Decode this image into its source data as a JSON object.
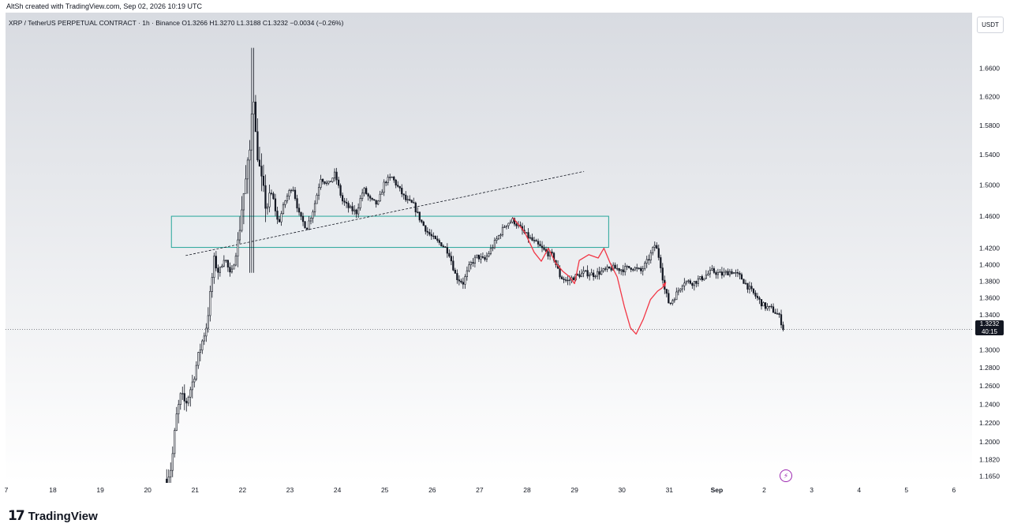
{
  "header": {
    "author_line": "AltSh created with TradingView.com, Sep 02, 2026 10:19 UTC"
  },
  "legend": {
    "symbol_line": "XRP / TetherUS PERPETUAL CONTRACT · 1h · Binance  O1.3266  H1.3270  L1.3188  C1.3232  −0.0034 (−0.26%)"
  },
  "currency_button": "USDT",
  "last_price": {
    "price": "1.3232",
    "countdown": "40:15"
  },
  "footer": {
    "brand": "TradingView",
    "logo_glyph": "17"
  },
  "colors": {
    "candle": "#131722",
    "zone_border": "#26a69a",
    "zone_fill": "#e8eef1",
    "trendline": "#131722",
    "projection": "#f23645",
    "background_top": "#d8dbe1",
    "background_bottom": "#ffffff",
    "indicator": "#9c27b0"
  },
  "icons": {
    "indicator_badge": "lightning-bolt-icon"
  },
  "chart_data": {
    "type": "candlestick",
    "title": "",
    "xlabel": "",
    "ylabel": "",
    "ylim": [
      1.155,
      1.7
    ],
    "y_scale": "log",
    "price_ticks": [
      "1.6600",
      "1.6200",
      "1.5800",
      "1.5400",
      "1.5000",
      "1.4600",
      "1.4200",
      "1.4000",
      "1.3800",
      "1.3600",
      "1.3400",
      "1.3000",
      "1.2800",
      "1.2600",
      "1.2400",
      "1.2200",
      "1.2000",
      "1.1820",
      "1.1650"
    ],
    "time_ticks": [
      {
        "label": "7",
        "day": 7
      },
      {
        "label": "18",
        "day": 18
      },
      {
        "label": "19",
        "day": 19
      },
      {
        "label": "20",
        "day": 20
      },
      {
        "label": "21",
        "day": 21
      },
      {
        "label": "22",
        "day": 22
      },
      {
        "label": "23",
        "day": 23
      },
      {
        "label": "24",
        "day": 24
      },
      {
        "label": "25",
        "day": 25
      },
      {
        "label": "26",
        "day": 26
      },
      {
        "label": "27",
        "day": 27
      },
      {
        "label": "28",
        "day": 28
      },
      {
        "label": "29",
        "day": 29
      },
      {
        "label": "30",
        "day": 30
      },
      {
        "label": "31",
        "day": 31
      },
      {
        "label": "Sep",
        "day": 32
      },
      {
        "label": "2",
        "day": 33
      },
      {
        "label": "3",
        "day": 34
      },
      {
        "label": "4",
        "day": 35
      },
      {
        "label": "5",
        "day": 36
      },
      {
        "label": "6",
        "day": 37
      }
    ],
    "x_range_days": [
      17,
      37
    ],
    "last_close": 1.3232,
    "price_path": [
      [
        20.4,
        1.162
      ],
      [
        20.5,
        1.175
      ],
      [
        20.6,
        1.225
      ],
      [
        20.7,
        1.25
      ],
      [
        20.8,
        1.24
      ],
      [
        20.95,
        1.265
      ],
      [
        21.1,
        1.3
      ],
      [
        21.25,
        1.33
      ],
      [
        21.4,
        1.405
      ],
      [
        21.5,
        1.39
      ],
      [
        21.62,
        1.41
      ],
      [
        21.75,
        1.385
      ],
      [
        21.9,
        1.425
      ],
      [
        22.0,
        1.48
      ],
      [
        22.08,
        1.51
      ],
      [
        22.15,
        1.545
      ],
      [
        22.22,
        1.64
      ],
      [
        22.28,
        1.56
      ],
      [
        22.38,
        1.51
      ],
      [
        22.5,
        1.47
      ],
      [
        22.62,
        1.49
      ],
      [
        22.75,
        1.45
      ],
      [
        22.9,
        1.48
      ],
      [
        23.05,
        1.5
      ],
      [
        23.2,
        1.46
      ],
      [
        23.35,
        1.445
      ],
      [
        23.5,
        1.47
      ],
      [
        23.65,
        1.51
      ],
      [
        23.8,
        1.5
      ],
      [
        23.95,
        1.515
      ],
      [
        24.1,
        1.48
      ],
      [
        24.25,
        1.47
      ],
      [
        24.4,
        1.465
      ],
      [
        24.55,
        1.495
      ],
      [
        24.7,
        1.48
      ],
      [
        24.85,
        1.475
      ],
      [
        25.0,
        1.505
      ],
      [
        25.15,
        1.51
      ],
      [
        25.3,
        1.495
      ],
      [
        25.45,
        1.48
      ],
      [
        25.6,
        1.475
      ],
      [
        25.75,
        1.455
      ],
      [
        25.9,
        1.44
      ],
      [
        26.05,
        1.43
      ],
      [
        26.2,
        1.425
      ],
      [
        26.35,
        1.415
      ],
      [
        26.5,
        1.385
      ],
      [
        26.65,
        1.378
      ],
      [
        26.8,
        1.4
      ],
      [
        26.95,
        1.41
      ],
      [
        27.1,
        1.405
      ],
      [
        27.25,
        1.42
      ],
      [
        27.4,
        1.435
      ],
      [
        27.55,
        1.45
      ],
      [
        27.7,
        1.455
      ],
      [
        27.85,
        1.445
      ],
      [
        28.0,
        1.435
      ],
      [
        28.2,
        1.425
      ],
      [
        28.4,
        1.415
      ],
      [
        28.55,
        1.41
      ],
      [
        28.7,
        1.385
      ],
      [
        28.85,
        1.38
      ],
      [
        29.0,
        1.385
      ],
      [
        29.2,
        1.39
      ],
      [
        29.4,
        1.388
      ],
      [
        29.6,
        1.392
      ],
      [
        29.8,
        1.396
      ],
      [
        30.0,
        1.394
      ],
      [
        30.2,
        1.397
      ],
      [
        30.4,
        1.392
      ],
      [
        30.55,
        1.405
      ],
      [
        30.7,
        1.425
      ],
      [
        30.8,
        1.405
      ],
      [
        30.9,
        1.37
      ],
      [
        31.0,
        1.352
      ],
      [
        31.15,
        1.365
      ],
      [
        31.3,
        1.38
      ],
      [
        31.5,
        1.378
      ],
      [
        31.7,
        1.384
      ],
      [
        31.9,
        1.392
      ],
      [
        32.1,
        1.388
      ],
      [
        32.3,
        1.392
      ],
      [
        32.5,
        1.385
      ],
      [
        32.7,
        1.37
      ],
      [
        32.85,
        1.36
      ],
      [
        33.0,
        1.35
      ],
      [
        33.15,
        1.347
      ],
      [
        33.3,
        1.34
      ],
      [
        33.42,
        1.323
      ]
    ],
    "annotations": {
      "support_zone": {
        "day_start": 20.5,
        "day_end": 29.72,
        "price_high": 1.46,
        "price_low": 1.421
      },
      "trendline": {
        "from": [
          20.8,
          1.411
        ],
        "to": [
          29.2,
          1.518
        ],
        "style": "dashed"
      },
      "projection_path": [
        [
          27.7,
          1.458
        ],
        [
          27.95,
          1.44
        ],
        [
          28.15,
          1.415
        ],
        [
          28.3,
          1.404
        ],
        [
          28.45,
          1.42
        ],
        [
          28.6,
          1.402
        ],
        [
          28.75,
          1.392
        ],
        [
          28.9,
          1.385
        ],
        [
          29.0,
          1.377
        ],
        [
          29.1,
          1.405
        ],
        [
          29.3,
          1.412
        ],
        [
          29.5,
          1.408
        ],
        [
          29.62,
          1.42
        ],
        [
          29.75,
          1.402
        ],
        [
          29.9,
          1.385
        ],
        [
          30.05,
          1.35
        ],
        [
          30.18,
          1.325
        ],
        [
          30.3,
          1.318
        ],
        [
          30.45,
          1.335
        ],
        [
          30.6,
          1.358
        ],
        [
          30.75,
          1.368
        ],
        [
          30.85,
          1.372
        ]
      ],
      "projection_arrow_to": [
        30.92,
        1.378
      ]
    }
  }
}
